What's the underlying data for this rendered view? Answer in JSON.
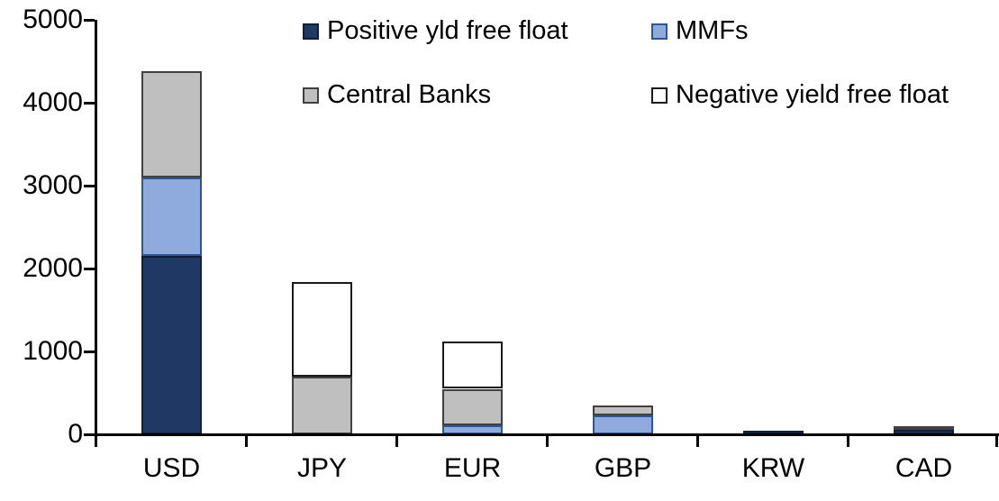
{
  "chart_data": {
    "type": "bar",
    "stacked": true,
    "title": "",
    "xlabel": "",
    "ylabel": "",
    "grid": false,
    "background_color": "#ffffff",
    "axis_color": "#000000",
    "text_color": "#000000",
    "ylim": [
      0,
      5000
    ],
    "yticks": [
      "0",
      "1000",
      "2000",
      "3000",
      "4000",
      "5000"
    ],
    "ytick_values": [
      0,
      1000,
      2000,
      3000,
      4000,
      5000
    ],
    "categories": [
      "USD",
      "JPY",
      "EUR",
      "GBP",
      "KRW",
      "CAD"
    ],
    "series": [
      {
        "name": "Positive yld free float",
        "color": "#1f3864",
        "border_color": "#0e1f3d",
        "values": [
          2150,
          0,
          0,
          0,
          45,
          50
        ]
      },
      {
        "name": "MMFs",
        "color": "#8faadc",
        "border_color": "#2f5597",
        "values": [
          950,
          0,
          110,
          225,
          0,
          0
        ]
      },
      {
        "name": "Central Banks",
        "color": "#bfbfbf",
        "border_color": "#404040",
        "values": [
          1280,
          700,
          440,
          115,
          0,
          40
        ]
      },
      {
        "name": "Negative yield free float",
        "color": "#ffffff",
        "border_color": "#1a1a1a",
        "values": [
          0,
          1140,
          570,
          0,
          0,
          0
        ]
      }
    ],
    "totals": [
      4380,
      1840,
      1120,
      340,
      45,
      90
    ],
    "legend_position": "top",
    "legend_layout": "2x2"
  }
}
